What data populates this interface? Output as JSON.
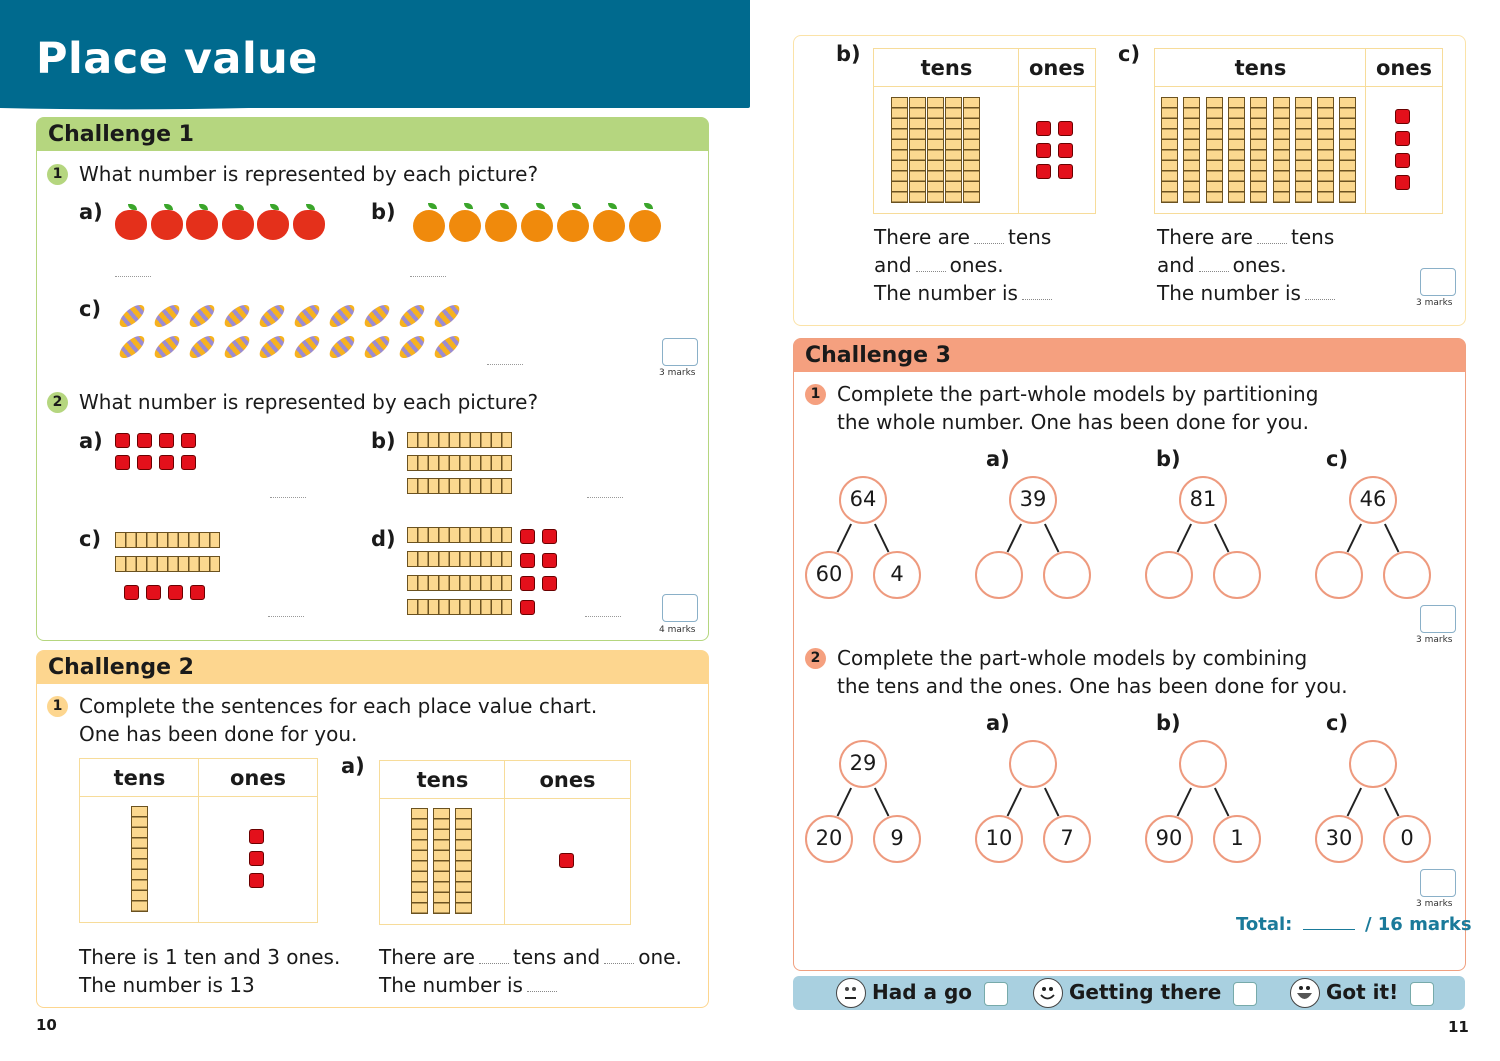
{
  "header": {
    "title": "Place value"
  },
  "colors": {
    "header_blue": "#006a8e",
    "challenge1": "#b5d67f",
    "challenge2": "#fdd68f",
    "challenge3": "#f5a07f",
    "footer": "#a9d0e0"
  },
  "challenge1": {
    "title": "Challenge 1",
    "q1": {
      "num": "1",
      "text": "What number is represented by each picture?",
      "items": [
        {
          "label": "a)",
          "picture": "apple",
          "count": 6
        },
        {
          "label": "b)",
          "picture": "orange",
          "count": 7
        },
        {
          "label": "c)",
          "picture": "sweet",
          "count": 20
        }
      ],
      "marks": "3 marks"
    },
    "q2": {
      "num": "2",
      "text": "What number is represented by each picture?",
      "items": [
        {
          "label": "a)",
          "tens": 0,
          "ones": 8
        },
        {
          "label": "b)",
          "tens": 3,
          "ones": 0
        },
        {
          "label": "c)",
          "tens": 2,
          "ones": 4
        },
        {
          "label": "d)",
          "tens": 4,
          "ones": 7
        }
      ],
      "marks": "4 marks"
    }
  },
  "challenge2": {
    "title": "Challenge 2",
    "q1": {
      "num": "1",
      "line1": "Complete the sentences for each place value chart.",
      "line2": "One has been done for you."
    },
    "col_tens": "tens",
    "col_ones": "ones",
    "example": {
      "tens": 1,
      "ones": 3,
      "line1": "There is 1 ten and 3 ones.",
      "line2": "The number is 13"
    },
    "a": {
      "label": "a)",
      "tens": 3,
      "ones": 1,
      "w1": "There are",
      "w2": "tens and",
      "w3": "one.",
      "w4": "The number is"
    }
  },
  "challenge2_cont": {
    "b": {
      "label": "b)",
      "tens": 5,
      "ones": 6
    },
    "c": {
      "label": "c)",
      "tens": 9,
      "ones": 4
    },
    "w_there_are": "There are",
    "w_tens": "tens",
    "w_and": "and",
    "w_ones": "ones.",
    "w_number": "The number is",
    "marks": "3 marks"
  },
  "challenge3": {
    "title": "Challenge 3",
    "q1": {
      "num": "1",
      "line1": "Complete the part-whole models by partitioning",
      "line2": "the whole number. One has been done for you.",
      "models": [
        {
          "label": "",
          "whole": "64",
          "parts": [
            "60",
            "4"
          ]
        },
        {
          "label": "a)",
          "whole": "39",
          "parts": [
            "",
            ""
          ]
        },
        {
          "label": "b)",
          "whole": "81",
          "parts": [
            "",
            ""
          ]
        },
        {
          "label": "c)",
          "whole": "46",
          "parts": [
            "",
            ""
          ]
        }
      ],
      "marks": "3 marks"
    },
    "q2": {
      "num": "2",
      "line1": "Complete the part-whole models by combining",
      "line2": "the tens and the ones. One has been done for you.",
      "models": [
        {
          "label": "",
          "whole": "29",
          "parts": [
            "20",
            "9"
          ]
        },
        {
          "label": "a)",
          "whole": "",
          "parts": [
            "10",
            "7"
          ]
        },
        {
          "label": "b)",
          "whole": "",
          "parts": [
            "90",
            "1"
          ]
        },
        {
          "label": "c)",
          "whole": "",
          "parts": [
            "30",
            "0"
          ]
        }
      ],
      "marks": "3 marks"
    },
    "total_label": "Total:",
    "total_suffix": "/ 16 marks"
  },
  "footer": {
    "items": [
      {
        "label": "Had a go",
        "face": "neutral"
      },
      {
        "label": "Getting there",
        "face": "smile"
      },
      {
        "label": "Got it!",
        "face": "grin"
      }
    ]
  },
  "pages": {
    "left": "10",
    "right": "11"
  }
}
